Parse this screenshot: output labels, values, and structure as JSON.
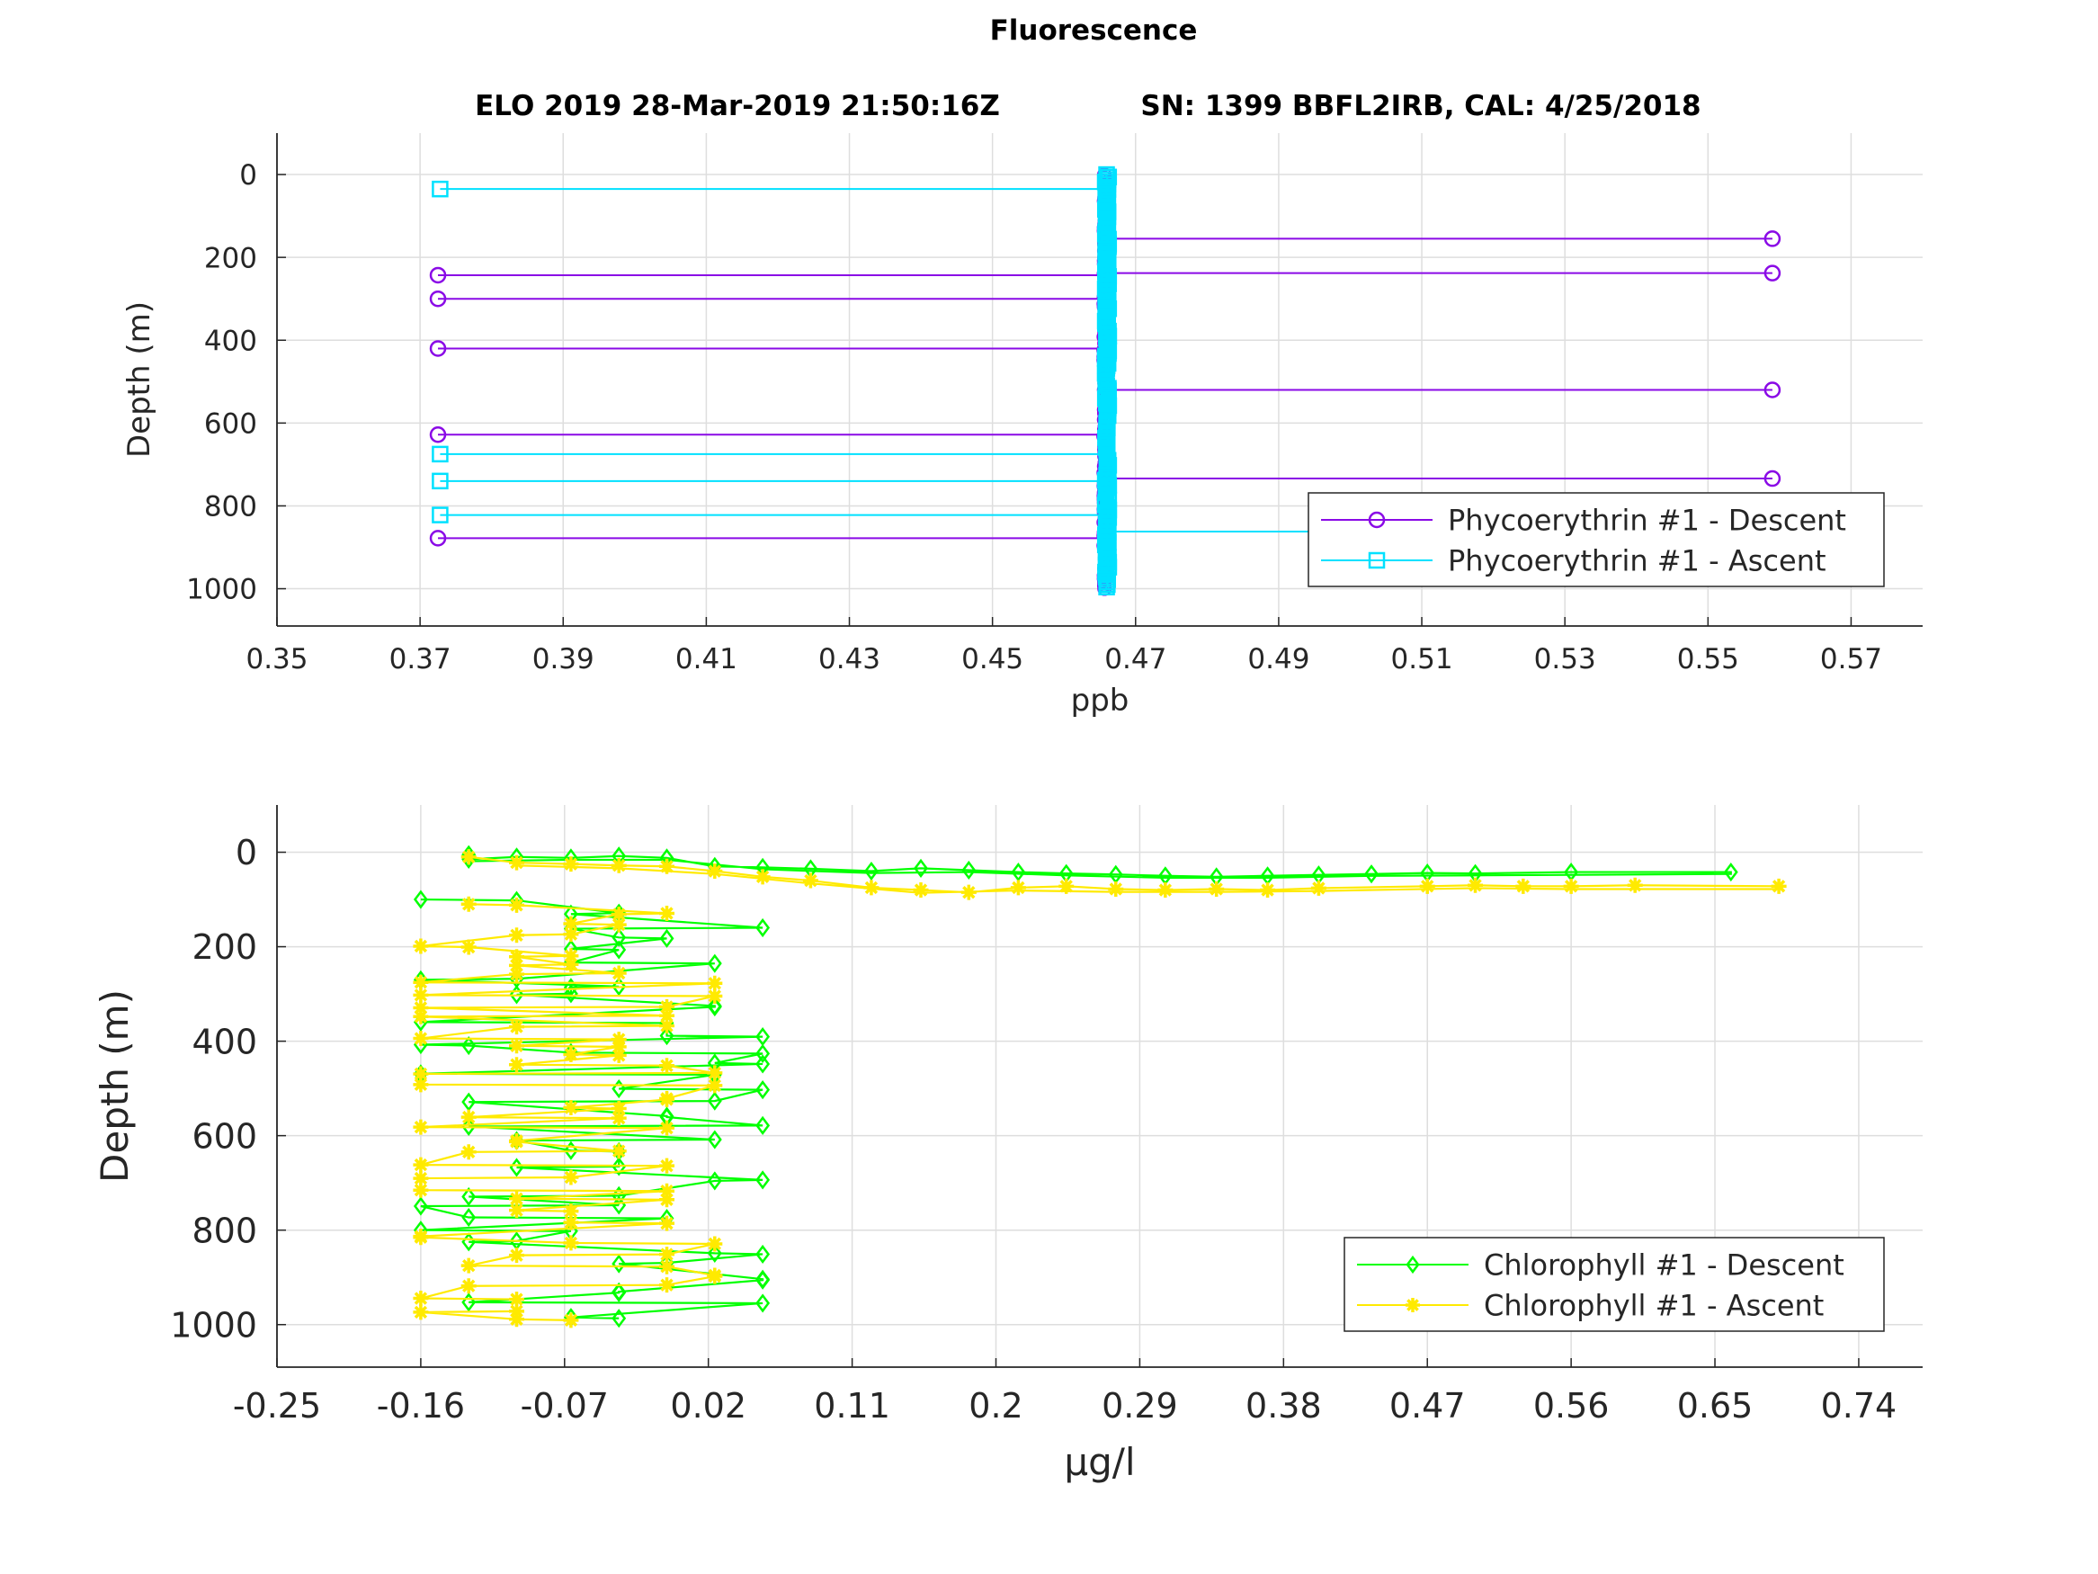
{
  "figure": {
    "title": "Fluorescence",
    "subtitle_left": "ELO 2019 28-Mar-2019 21:50:16Z",
    "subtitle_right": "SN: 1399 BBFL2IRB, CAL: 4/25/2018"
  },
  "chart_data": [
    {
      "type": "line",
      "title": "Fluorescence",
      "xlabel": "ppb",
      "ylabel": "Depth (m)",
      "xlim": [
        0.35,
        0.58
      ],
      "ylim": [
        -100,
        1090
      ],
      "y_reversed": true,
      "grid": true,
      "legend_position": "bottom-right",
      "x_ticks": [
        0.35,
        0.37,
        0.39,
        0.41,
        0.43,
        0.45,
        0.47,
        0.49,
        0.51,
        0.53,
        0.55,
        0.57
      ],
      "x_tick_labels": [
        "0.35",
        "0.37",
        "0.39",
        "0.41",
        "0.43",
        "0.45",
        "0.47",
        "0.49",
        "0.51",
        "0.53",
        "0.55",
        "0.57"
      ],
      "y_ticks": [
        0,
        200,
        400,
        600,
        800,
        1000
      ],
      "y_tick_labels": [
        "0",
        "200",
        "400",
        "600",
        "800",
        "1000"
      ],
      "series": [
        {
          "name": "Phycoerythrin #1 - Descent",
          "color": "#8a0ae6",
          "marker": "circle",
          "baseline_x": 0.4657,
          "depth_range": [
            0,
            1000
          ],
          "spikes": [
            {
              "x": 0.559,
              "y": 155
            },
            {
              "x": 0.559,
              "y": 238
            },
            {
              "x": 0.3725,
              "y": 243
            },
            {
              "x": 0.3725,
              "y": 300
            },
            {
              "x": 0.3725,
              "y": 420
            },
            {
              "x": 0.559,
              "y": 520
            },
            {
              "x": 0.3725,
              "y": 628
            },
            {
              "x": 0.559,
              "y": 734
            },
            {
              "x": 0.3725,
              "y": 878
            }
          ]
        },
        {
          "name": "Phycoerythrin #1 - Ascent",
          "color": "#00e1ff",
          "marker": "square",
          "baseline_x": 0.466,
          "depth_range": [
            0,
            1000
          ],
          "spikes": [
            {
              "x": 0.3728,
              "y": 35
            },
            {
              "x": 0.3728,
              "y": 675
            },
            {
              "x": 0.3728,
              "y": 740
            },
            {
              "x": 0.3728,
              "y": 822
            },
            {
              "x": 0.56,
              "y": 862
            }
          ]
        }
      ]
    },
    {
      "type": "line",
      "xlabel": "μg/l",
      "ylabel": "Depth (m)",
      "xlim": [
        -0.25,
        0.78
      ],
      "ylim": [
        -100,
        1090
      ],
      "y_reversed": true,
      "grid": true,
      "legend_position": "bottom-right",
      "x_ticks": [
        -0.25,
        -0.16,
        -0.07,
        0.02,
        0.11,
        0.2,
        0.29,
        0.38,
        0.47,
        0.56,
        0.65,
        0.74
      ],
      "x_tick_labels": [
        "-0.25",
        "-0.16",
        "-0.07",
        "0.02",
        "0.11",
        "0.2",
        "0.29",
        "0.38",
        "0.47",
        "0.56",
        "0.65",
        "0.74"
      ],
      "y_ticks": [
        0,
        200,
        400,
        600,
        800,
        1000
      ],
      "y_tick_labels": [
        "0",
        "200",
        "400",
        "600",
        "800",
        "1000"
      ],
      "series": [
        {
          "name": "Chlorophyll #1 - Descent",
          "color": "#00ff00",
          "marker": "diamond",
          "surface_points": [
            {
              "x": -0.13,
              "y": 5
            },
            {
              "x": -0.13,
              "y": 15
            },
            {
              "x": -0.1,
              "y": 10
            },
            {
              "x": -0.066,
              "y": 12
            },
            {
              "x": -0.036,
              "y": 8
            },
            {
              "x": -0.006,
              "y": 12
            },
            {
              "x": 0.024,
              "y": 30
            },
            {
              "x": 0.054,
              "y": 32
            },
            {
              "x": 0.084,
              "y": 35
            },
            {
              "x": 0.122,
              "y": 40
            },
            {
              "x": 0.153,
              "y": 34
            },
            {
              "x": 0.183,
              "y": 38
            },
            {
              "x": 0.214,
              "y": 42
            },
            {
              "x": 0.244,
              "y": 45
            },
            {
              "x": 0.275,
              "y": 47
            },
            {
              "x": 0.306,
              "y": 50
            },
            {
              "x": 0.338,
              "y": 52
            },
            {
              "x": 0.37,
              "y": 50
            },
            {
              "x": 0.402,
              "y": 48
            },
            {
              "x": 0.435,
              "y": 46
            },
            {
              "x": 0.47,
              "y": 44
            },
            {
              "x": 0.5,
              "y": 45
            },
            {
              "x": 0.56,
              "y": 42
            },
            {
              "x": 0.66,
              "y": 42
            }
          ],
          "bulk_x_values": [
            -0.16,
            -0.13,
            -0.1,
            -0.066,
            -0.036,
            -0.006,
            0.024,
            0.054
          ],
          "bulk_depth_range": [
            100,
            1000
          ],
          "bulk_level_step": 25
        },
        {
          "name": "Chlorophyll #1 - Ascent",
          "color": "#ffea00",
          "marker": "asterisk",
          "surface_points": [
            {
              "x": -0.13,
              "y": 10
            },
            {
              "x": -0.1,
              "y": 22
            },
            {
              "x": -0.066,
              "y": 25
            },
            {
              "x": -0.036,
              "y": 28
            },
            {
              "x": -0.006,
              "y": 30
            },
            {
              "x": 0.024,
              "y": 40
            },
            {
              "x": 0.054,
              "y": 52
            },
            {
              "x": 0.084,
              "y": 60
            },
            {
              "x": 0.122,
              "y": 75
            },
            {
              "x": 0.153,
              "y": 80
            },
            {
              "x": 0.183,
              "y": 85
            },
            {
              "x": 0.214,
              "y": 75
            },
            {
              "x": 0.244,
              "y": 72
            },
            {
              "x": 0.275,
              "y": 78
            },
            {
              "x": 0.306,
              "y": 80
            },
            {
              "x": 0.338,
              "y": 78
            },
            {
              "x": 0.37,
              "y": 80
            },
            {
              "x": 0.402,
              "y": 76
            },
            {
              "x": 0.47,
              "y": 72
            },
            {
              "x": 0.5,
              "y": 70
            },
            {
              "x": 0.53,
              "y": 72
            },
            {
              "x": 0.56,
              "y": 72
            },
            {
              "x": 0.6,
              "y": 70
            },
            {
              "x": 0.69,
              "y": 72
            }
          ],
          "bulk_x_values": [
            -0.16,
            -0.13,
            -0.1,
            -0.066,
            -0.036,
            -0.006,
            0.024
          ],
          "bulk_depth_range": [
            110,
            1000
          ],
          "bulk_level_step": 22
        }
      ]
    }
  ]
}
